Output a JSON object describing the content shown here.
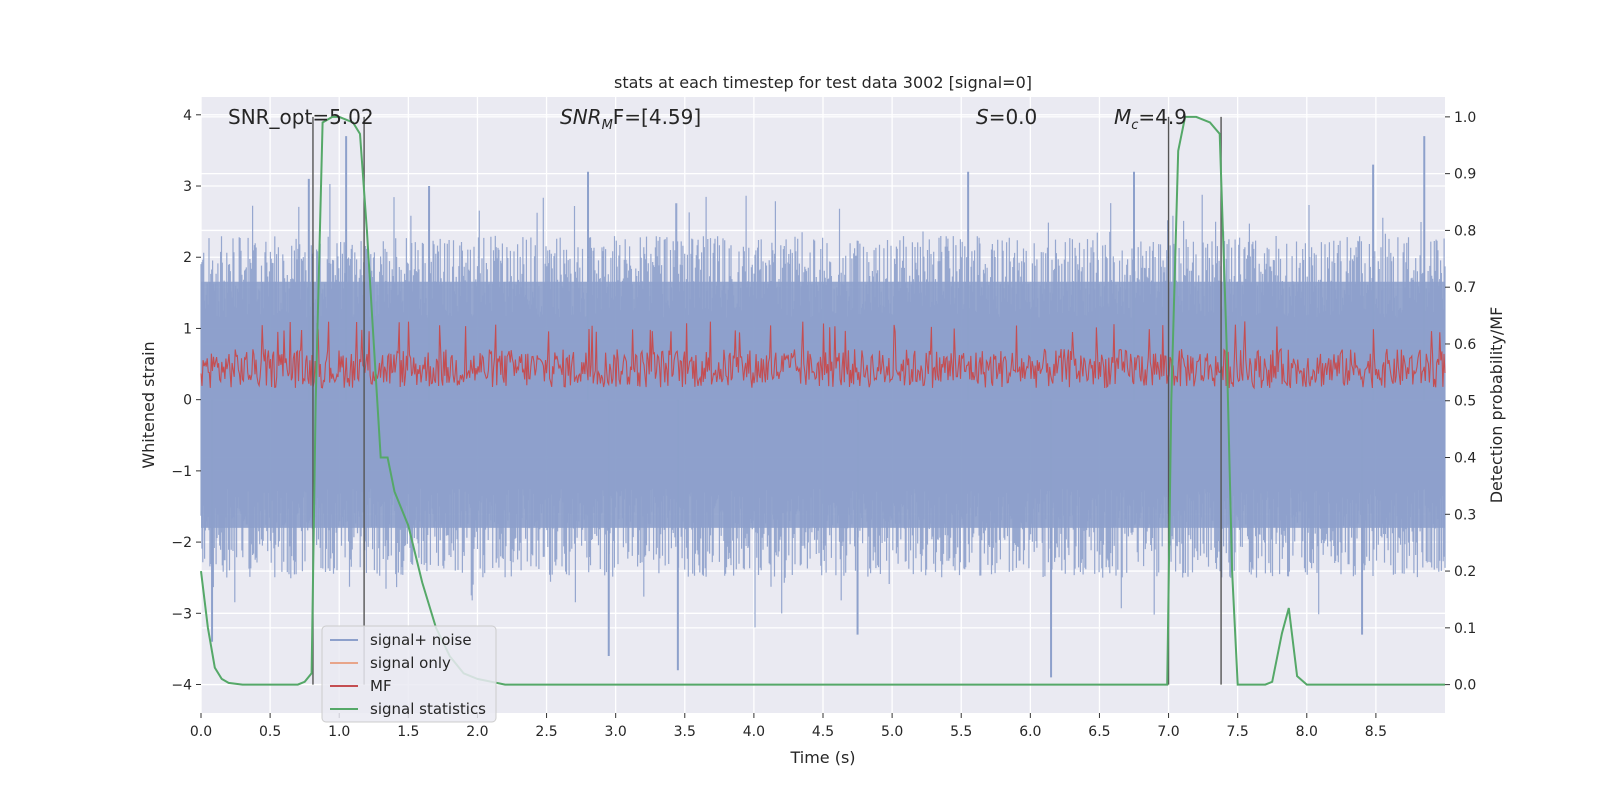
{
  "chart_data": {
    "type": "line",
    "title": "stats at each timestep for test data 3002 [signal=0]",
    "xlabel": "Time (s)",
    "ylabel": "Whitened strain",
    "y2label": "Detection probability/MF",
    "xlim": [
      0,
      9.0
    ],
    "ylim": [
      -4.4,
      4.25
    ],
    "y2lim": [
      -0.05,
      1.035
    ],
    "grid": true,
    "legend_position": "lower-left",
    "x_ticks": [
      "0.0",
      "0.5",
      "1.0",
      "1.5",
      "2.0",
      "2.5",
      "3.0",
      "3.5",
      "4.0",
      "4.5",
      "5.0",
      "5.5",
      "6.0",
      "6.5",
      "7.0",
      "7.5",
      "8.0",
      "8.5"
    ],
    "y_ticks": [
      "4",
      "3",
      "2",
      "1",
      "0",
      "−1",
      "−2",
      "−3",
      "−4"
    ],
    "y2_ticks": [
      "1.0",
      "0.9",
      "0.8",
      "0.7",
      "0.6",
      "0.5",
      "0.4",
      "0.3",
      "0.2",
      "0.1",
      "0.0"
    ],
    "annotations": {
      "snr_opt": "SNR_opt=5.02",
      "snr_mf_base": "SNR",
      "snr_mf_sub": "M",
      "snr_mf_rest": "F=[4.59]",
      "s_var": "S",
      "s_rest": "=0.0",
      "mc_var": "M",
      "mc_sub": "c",
      "mc_rest": "=4.9"
    },
    "vertical_markers": [
      0.81,
      1.18,
      7.0,
      7.38
    ],
    "series": [
      {
        "name": "signal+ noise",
        "axis": "left",
        "color": "#8da0cb",
        "kind": "noise",
        "envelope": [
          -2.5,
          2.3
        ],
        "peaks_max": [
          [
            0.78,
            3.1
          ],
          [
            1.05,
            3.7
          ],
          [
            1.65,
            3.0
          ],
          [
            2.8,
            3.2
          ],
          [
            5.55,
            3.2
          ],
          [
            8.48,
            3.3
          ],
          [
            8.85,
            3.7
          ],
          [
            6.75,
            3.2
          ]
        ],
        "peaks_min": [
          [
            0.08,
            -3.4
          ],
          [
            3.45,
            -3.8
          ],
          [
            6.15,
            -3.9
          ],
          [
            2.95,
            -3.6
          ],
          [
            4.75,
            -3.3
          ],
          [
            8.4,
            -3.3
          ]
        ]
      },
      {
        "name": "signal only",
        "axis": "left",
        "color": "#e8a58a",
        "values": []
      },
      {
        "name": "MF",
        "axis": "right",
        "color": "#c44e52",
        "kind": "noise",
        "band": [
          0.505,
          0.62
        ]
      },
      {
        "name": "signal statistics",
        "axis": "right",
        "color": "#55a868",
        "x": [
          0.0,
          0.05,
          0.1,
          0.15,
          0.2,
          0.3,
          0.5,
          0.7,
          0.75,
          0.8,
          0.83,
          0.88,
          0.95,
          1.0,
          1.05,
          1.1,
          1.15,
          1.2,
          1.25,
          1.3,
          1.35,
          1.4,
          1.5,
          1.6,
          1.7,
          1.8,
          1.9,
          2.0,
          2.2,
          2.5,
          3.0,
          4.0,
          5.0,
          6.0,
          6.99,
          7.02,
          7.07,
          7.12,
          7.2,
          7.3,
          7.37,
          7.42,
          7.46,
          7.5,
          7.6,
          7.7,
          7.75,
          7.82,
          7.87,
          7.93,
          8.0,
          8.5,
          9.0
        ],
        "y": [
          0.2,
          0.1,
          0.03,
          0.01,
          0.003,
          0.0,
          0.0,
          0.0,
          0.005,
          0.02,
          0.5,
          0.99,
          1.0,
          1.0,
          0.995,
          0.99,
          0.97,
          0.8,
          0.6,
          0.4,
          0.4,
          0.34,
          0.28,
          0.18,
          0.1,
          0.05,
          0.02,
          0.01,
          0.0,
          0.0,
          0.0,
          0.0,
          0.0,
          0.0,
          0.0,
          0.5,
          0.94,
          1.0,
          1.0,
          0.99,
          0.97,
          0.6,
          0.2,
          0.0,
          0.0,
          0.0,
          0.005,
          0.09,
          0.135,
          0.015,
          0.0,
          0.0,
          0.0
        ]
      }
    ]
  }
}
